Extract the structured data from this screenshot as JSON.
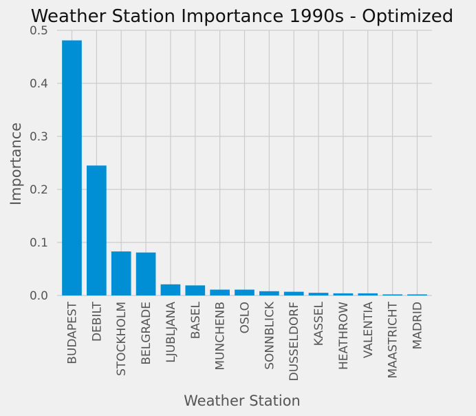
{
  "chart_data": {
    "type": "bar",
    "title": "Weather Station Importance 1990s - Optimized",
    "xlabel": "Weather Station",
    "ylabel": "Importance",
    "ylim": [
      0,
      0.5
    ],
    "yticks": [
      "0.0",
      "0.1",
      "0.2",
      "0.3",
      "0.4",
      "0.5"
    ],
    "grid": true,
    "bar_color": "#008fd5",
    "categories": [
      "BUDAPEST",
      "DEBILT",
      "STOCKHOLM",
      "BELGRADE",
      "LJUBLJANA",
      "BASEL",
      "MUNCHENB",
      "OSLO",
      "SONNBLICK",
      "DUSSELDORF",
      "KASSEL",
      "HEATHROW",
      "VALENTIA",
      "MAASTRICHT",
      "MADRID"
    ],
    "values": [
      0.481,
      0.245,
      0.083,
      0.081,
      0.021,
      0.019,
      0.011,
      0.011,
      0.008,
      0.007,
      0.005,
      0.004,
      0.004,
      0.002,
      0.002
    ]
  }
}
